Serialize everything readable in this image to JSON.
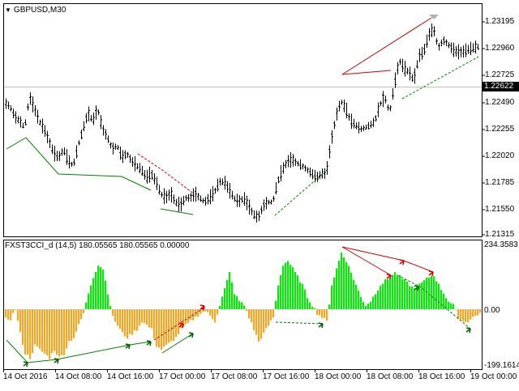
{
  "chart": {
    "symbol_label": "GBPUSD,M30",
    "current_price": "1.22622",
    "price_axis": [
      "1.23195",
      "1.22960",
      "1.22725",
      "1.22490",
      "1.22255",
      "1.22020",
      "1.21785",
      "1.21550",
      "1.21315"
    ],
    "indicator_title": "FXST3CCI_d (14,5) 180.05565 180.05565 0.00000",
    "indicator_axis": [
      "234.3583",
      "0.00",
      "-199.1614"
    ],
    "time_axis": [
      "14 Oct 2016",
      "14 Oct 08:00",
      "14 Oct 16:00",
      "17 Oct 00:00",
      "17 Oct 08:00",
      "17 Oct 16:00",
      "18 Oct 00:00",
      "18 Oct 08:00",
      "18 Oct 16:00",
      "19 Oct 00:00"
    ],
    "colors": {
      "bullish_bar": "#00ee00",
      "bearish_bar": "#f5a623",
      "trendline_up": "#008000",
      "trendline_down": "#cc0000",
      "grid_line": "#c0c0c0"
    }
  }
}
